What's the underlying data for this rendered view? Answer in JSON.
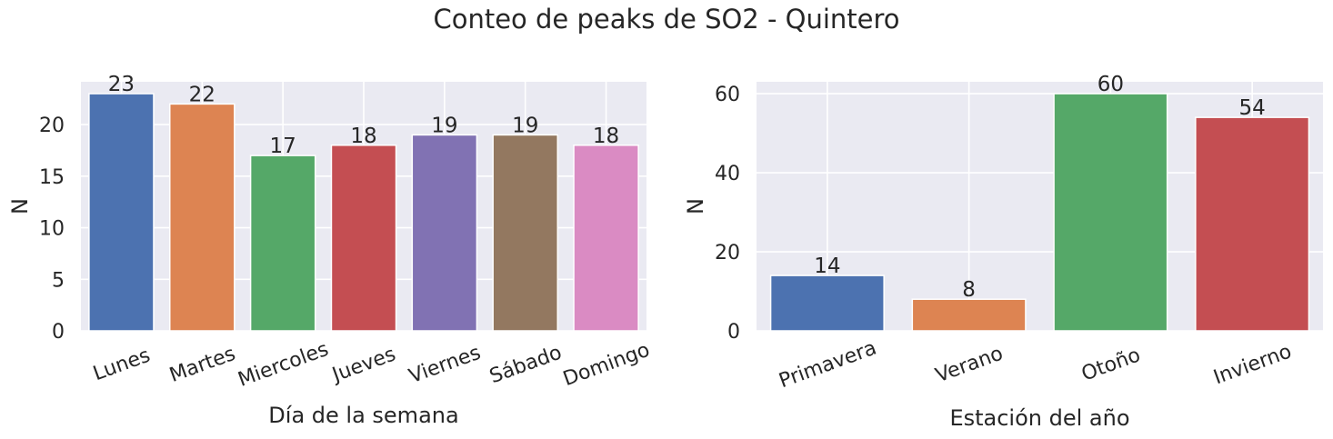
{
  "title": "Conteo de peaks de SO2 - Quintero",
  "chart_data": [
    {
      "type": "bar",
      "categories": [
        "Lunes",
        "Martes",
        "Miercoles",
        "Jueves",
        "Viernes",
        "Sábado",
        "Domingo"
      ],
      "values": [
        23,
        22,
        17,
        18,
        19,
        19,
        18
      ],
      "colors": [
        "#4c72b0",
        "#dd8452",
        "#55a868",
        "#c44e52",
        "#8172b3",
        "#937860",
        "#da8bc3"
      ],
      "xlabel": "Día de la semana",
      "ylabel": "N",
      "ylim": [
        0,
        24.15
      ],
      "yticks": [
        0,
        5,
        10,
        15,
        20
      ],
      "grid": true
    },
    {
      "type": "bar",
      "categories": [
        "Primavera",
        "Verano",
        "Otoño",
        "Invierno"
      ],
      "values": [
        14,
        8,
        60,
        54
      ],
      "colors": [
        "#4c72b0",
        "#dd8452",
        "#55a868",
        "#c44e52"
      ],
      "xlabel": "Estación del año",
      "ylabel": "N",
      "ylim": [
        0,
        63
      ],
      "yticks": [
        0,
        20,
        40,
        60
      ],
      "grid": true
    }
  ]
}
